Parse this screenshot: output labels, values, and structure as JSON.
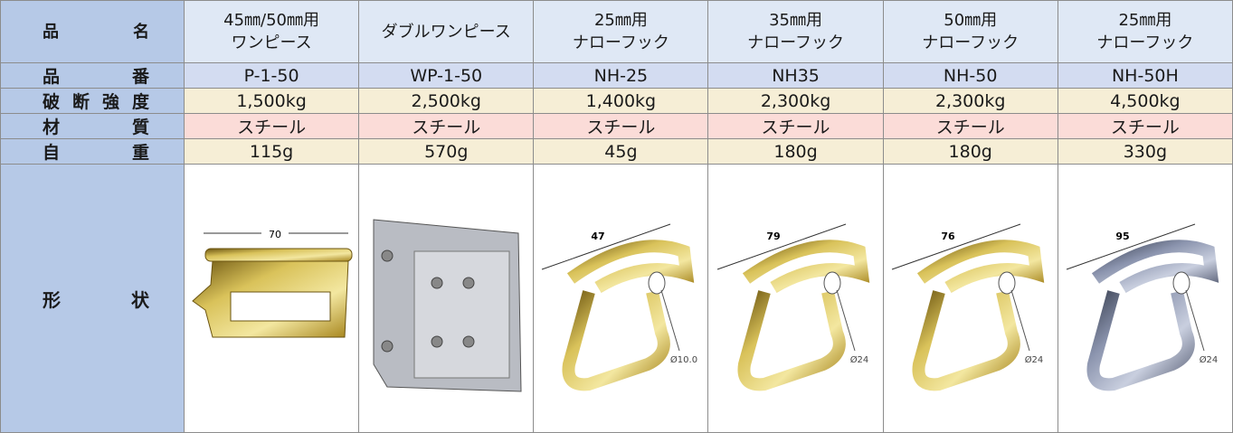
{
  "table": {
    "row_labels": [
      "品名",
      "品番",
      "破断強度",
      "材質",
      "自重",
      "形状"
    ],
    "columns": [
      {
        "name": [
          "45㎜/50㎜用",
          "ワンピース"
        ],
        "code": "P-1-50",
        "strength": "1,500kg",
        "material": "スチール",
        "weight": "115g",
        "dimension": "70"
      },
      {
        "name": [
          "ダブルワンピース"
        ],
        "code": "WP-1-50",
        "strength": "2,500kg",
        "material": "スチール",
        "weight": "570g"
      },
      {
        "name": [
          "25㎜用",
          "ナローフック"
        ],
        "code": "NH-25",
        "strength": "1,400kg",
        "material": "スチール",
        "weight": "45g",
        "dimension": "47",
        "diameter": "Ø10.0"
      },
      {
        "name": [
          "35㎜用",
          "ナローフック"
        ],
        "code": "NH35",
        "strength": "2,300kg",
        "material": "スチール",
        "weight": "180g",
        "dimension": "79",
        "diameter": "Ø24"
      },
      {
        "name": [
          "50㎜用",
          "ナローフック"
        ],
        "code": "NH-50",
        "strength": "2,300kg",
        "material": "スチール",
        "weight": "180g",
        "dimension": "76",
        "diameter": "Ø24"
      },
      {
        "name": [
          "25㎜用",
          "ナローフック"
        ],
        "code": "NH-50H",
        "strength": "4,500kg",
        "material": "スチール",
        "weight": "330g",
        "dimension": "95",
        "diameter": "Ø24"
      }
    ]
  }
}
